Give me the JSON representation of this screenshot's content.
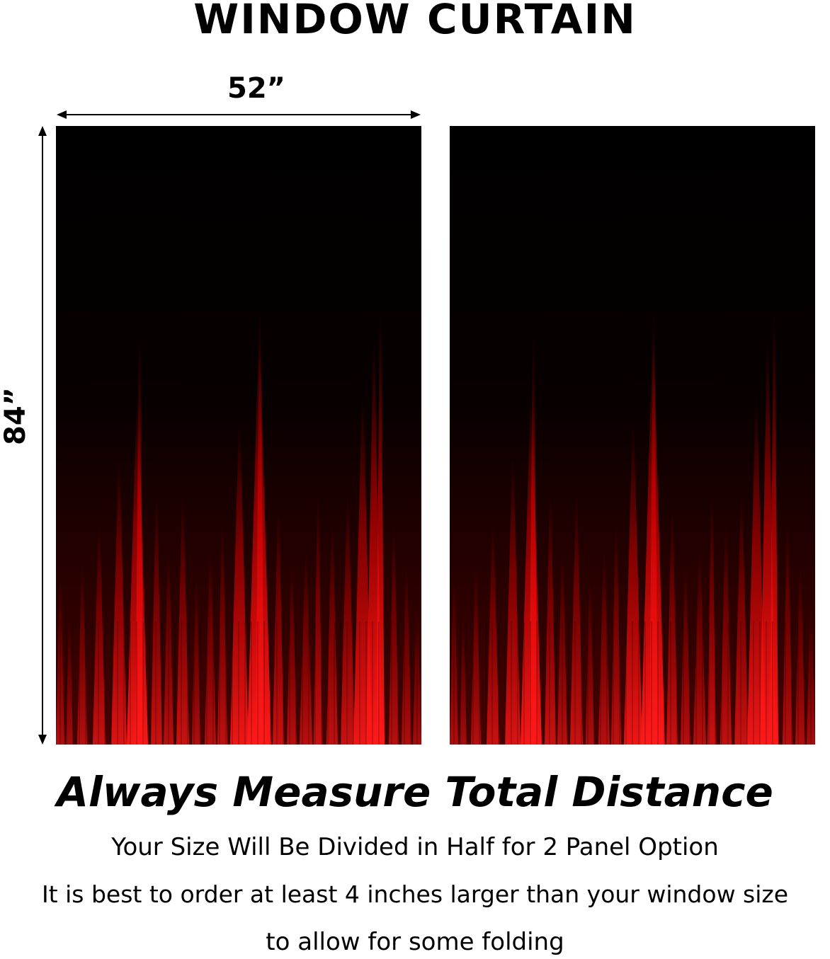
{
  "title": "WINDOW CURTAIN",
  "dimensions": {
    "width_label": "52”",
    "height_label": "84”"
  },
  "panels": [
    {
      "name": "left-panel"
    },
    {
      "name": "right-panel"
    }
  ],
  "colors": {
    "curtain_top": "#000000",
    "curtain_red": "#e00000",
    "curtain_bright_red": "#ff1a1a",
    "text": "#000000",
    "background": "#ffffff"
  },
  "headline": "Always Measure Total Distance",
  "notes": [
    "Your Size Will Be Divided in Half for 2 Panel Option",
    "It is best to order at least 4 inches larger than your window size",
    "to allow for some folding"
  ]
}
